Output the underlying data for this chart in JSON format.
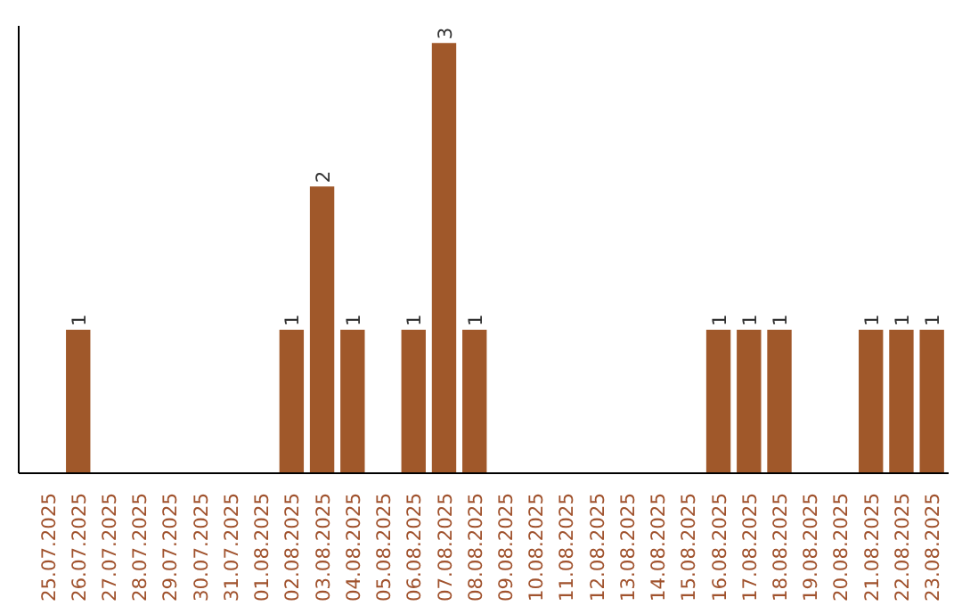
{
  "chart_data": {
    "type": "bar",
    "categories": [
      "25.07.2025",
      "26.07.2025",
      "27.07.2025",
      "28.07.2025",
      "29.07.2025",
      "30.07.2025",
      "31.07.2025",
      "01.08.2025",
      "02.08.2025",
      "03.08.2025",
      "04.08.2025",
      "05.08.2025",
      "06.08.2025",
      "07.08.2025",
      "08.08.2025",
      "09.08.2025",
      "10.08.2025",
      "11.08.2025",
      "12.08.2025",
      "13.08.2025",
      "14.08.2025",
      "15.08.2025",
      "16.08.2025",
      "17.08.2025",
      "18.08.2025",
      "19.08.2025",
      "20.08.2025",
      "21.08.2025",
      "22.08.2025",
      "23.08.2025"
    ],
    "values": [
      0,
      1,
      0,
      0,
      0,
      0,
      0,
      0,
      1,
      2,
      1,
      0,
      1,
      3,
      1,
      0,
      0,
      0,
      0,
      0,
      0,
      0,
      1,
      1,
      1,
      0,
      0,
      1,
      1,
      1
    ],
    "value_labels": [
      null,
      "1",
      null,
      null,
      null,
      null,
      null,
      null,
      "1",
      "2",
      "1",
      null,
      "1",
      "3",
      "1",
      null,
      null,
      null,
      null,
      null,
      null,
      null,
      "1",
      "1",
      "1",
      null,
      null,
      "1",
      "1",
      "1"
    ],
    "color": "#a0582a",
    "grid": false,
    "tick_labels": "x"
  }
}
